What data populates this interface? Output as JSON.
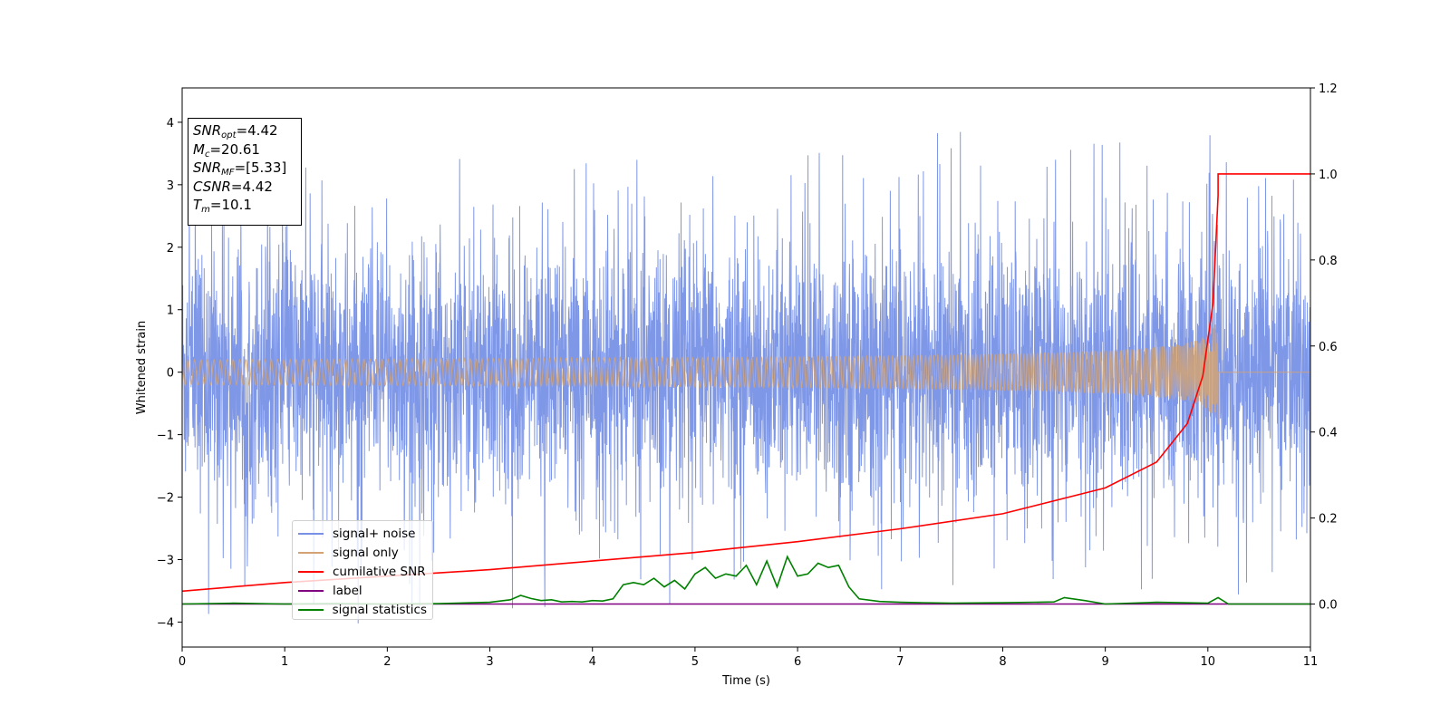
{
  "chart_data": {
    "type": "line",
    "title": "",
    "xlabel": "Time (s)",
    "ylabel": "Whitened strain",
    "y2label": "",
    "xlim": [
      0,
      11
    ],
    "ylim": [
      -4.4,
      4.55
    ],
    "y2lim": [
      -0.1,
      1.2
    ],
    "xticks": [
      "0",
      "1",
      "2",
      "3",
      "4",
      "5",
      "6",
      "7",
      "8",
      "9",
      "10",
      "11"
    ],
    "yticks": [
      "−4",
      "−3",
      "−2",
      "−1",
      "0",
      "1",
      "2",
      "3",
      "4"
    ],
    "y2ticks": [
      "0.0",
      "0.2",
      "0.4",
      "0.6",
      "0.8",
      "1.0",
      "1.2"
    ],
    "grid": false,
    "legend_position": "lower-left",
    "annotation": {
      "snr_opt": {
        "label": "SNR",
        "sub": "opt",
        "value": "=4.42"
      },
      "mc": {
        "label": "M",
        "sub": "c",
        "value": "=20.61"
      },
      "snr_mf": {
        "label": "SNR",
        "sub": "MF",
        "value": "=[5.33]"
      },
      "csnr": {
        "label": "CSNR",
        "value": "=4.42"
      },
      "tm": {
        "label": "T",
        "sub": "m",
        "value": "=10.1"
      }
    },
    "series": [
      {
        "name": "signal+ noise",
        "color": "#7891e6",
        "axis": "left",
        "style": "noise",
        "amplitude_typical": 1.5,
        "amplitude_max": 3.9
      },
      {
        "name": "signal only",
        "color": "#d4a373",
        "axis": "left",
        "style": "chirp",
        "merger_time": 10.1,
        "peak_amplitude": 0.95
      },
      {
        "name": "cumilative SNR",
        "color": "#ff0000",
        "axis": "right",
        "x": [
          0,
          1,
          2,
          3,
          4,
          5,
          6,
          7,
          8,
          9,
          9.5,
          9.8,
          9.95,
          10.05,
          10.1,
          10.1,
          11
        ],
        "y": [
          0.03,
          0.05,
          0.065,
          0.08,
          0.1,
          0.12,
          0.145,
          0.175,
          0.21,
          0.27,
          0.33,
          0.42,
          0.53,
          0.7,
          0.95,
          1.0,
          1.0
        ]
      },
      {
        "name": "label",
        "color": "#800080",
        "axis": "right",
        "x": [
          0,
          11
        ],
        "y": [
          0.0,
          0.0
        ]
      },
      {
        "name": "signal statistics",
        "color": "#008000",
        "axis": "right",
        "x": [
          0,
          0.5,
          1,
          1.5,
          2,
          2.5,
          3,
          3.2,
          3.3,
          3.4,
          3.5,
          3.6,
          3.7,
          3.8,
          3.9,
          4,
          4.1,
          4.2,
          4.3,
          4.4,
          4.5,
          4.6,
          4.7,
          4.8,
          4.9,
          5,
          5.1,
          5.2,
          5.3,
          5.4,
          5.5,
          5.6,
          5.7,
          5.8,
          5.9,
          6,
          6.1,
          6.2,
          6.3,
          6.4,
          6.5,
          6.6,
          6.8,
          7,
          7.5,
          8,
          8.5,
          8.6,
          8.8,
          9,
          9.5,
          10,
          10.1,
          10.2,
          11
        ],
        "y": [
          0.0,
          0.002,
          0.0,
          0.001,
          0.0,
          0.001,
          0.004,
          0.01,
          0.02,
          0.013,
          0.008,
          0.01,
          0.005,
          0.006,
          0.005,
          0.008,
          0.007,
          0.012,
          0.045,
          0.05,
          0.045,
          0.06,
          0.04,
          0.055,
          0.035,
          0.07,
          0.085,
          0.06,
          0.07,
          0.065,
          0.09,
          0.045,
          0.1,
          0.04,
          0.11,
          0.065,
          0.07,
          0.095,
          0.085,
          0.09,
          0.04,
          0.012,
          0.006,
          0.004,
          0.002,
          0.003,
          0.005,
          0.015,
          0.008,
          0.0,
          0.004,
          0.002,
          0.015,
          0.0,
          0.0
        ]
      }
    ]
  }
}
